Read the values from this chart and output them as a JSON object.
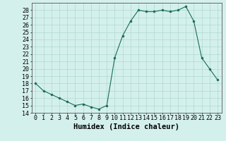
{
  "x": [
    0,
    1,
    2,
    3,
    4,
    5,
    6,
    7,
    8,
    9,
    10,
    11,
    12,
    13,
    14,
    15,
    16,
    17,
    18,
    19,
    20,
    21,
    22,
    23
  ],
  "y": [
    18,
    17,
    16.5,
    16,
    15.5,
    15,
    15.2,
    14.8,
    14.5,
    15,
    21.5,
    24.5,
    26.5,
    28,
    27.8,
    27.8,
    28,
    27.8,
    28,
    28.5,
    26.5,
    21.5,
    20,
    18.5
  ],
  "line_color": "#1a6b5a",
  "marker_color": "#1a6b5a",
  "bg_color": "#d4f0ec",
  "grid_color": "#aed8d2",
  "xlabel": "Humidex (Indice chaleur)",
  "xlim": [
    -0.5,
    23.5
  ],
  "ylim": [
    14,
    29
  ],
  "yticks": [
    14,
    15,
    16,
    17,
    18,
    19,
    20,
    21,
    22,
    23,
    24,
    25,
    26,
    27,
    28
  ],
  "xticks": [
    0,
    1,
    2,
    3,
    4,
    5,
    6,
    7,
    8,
    9,
    10,
    11,
    12,
    13,
    14,
    15,
    16,
    17,
    18,
    19,
    20,
    21,
    22,
    23
  ],
  "xlabel_fontsize": 7.5,
  "tick_fontsize": 6.0
}
